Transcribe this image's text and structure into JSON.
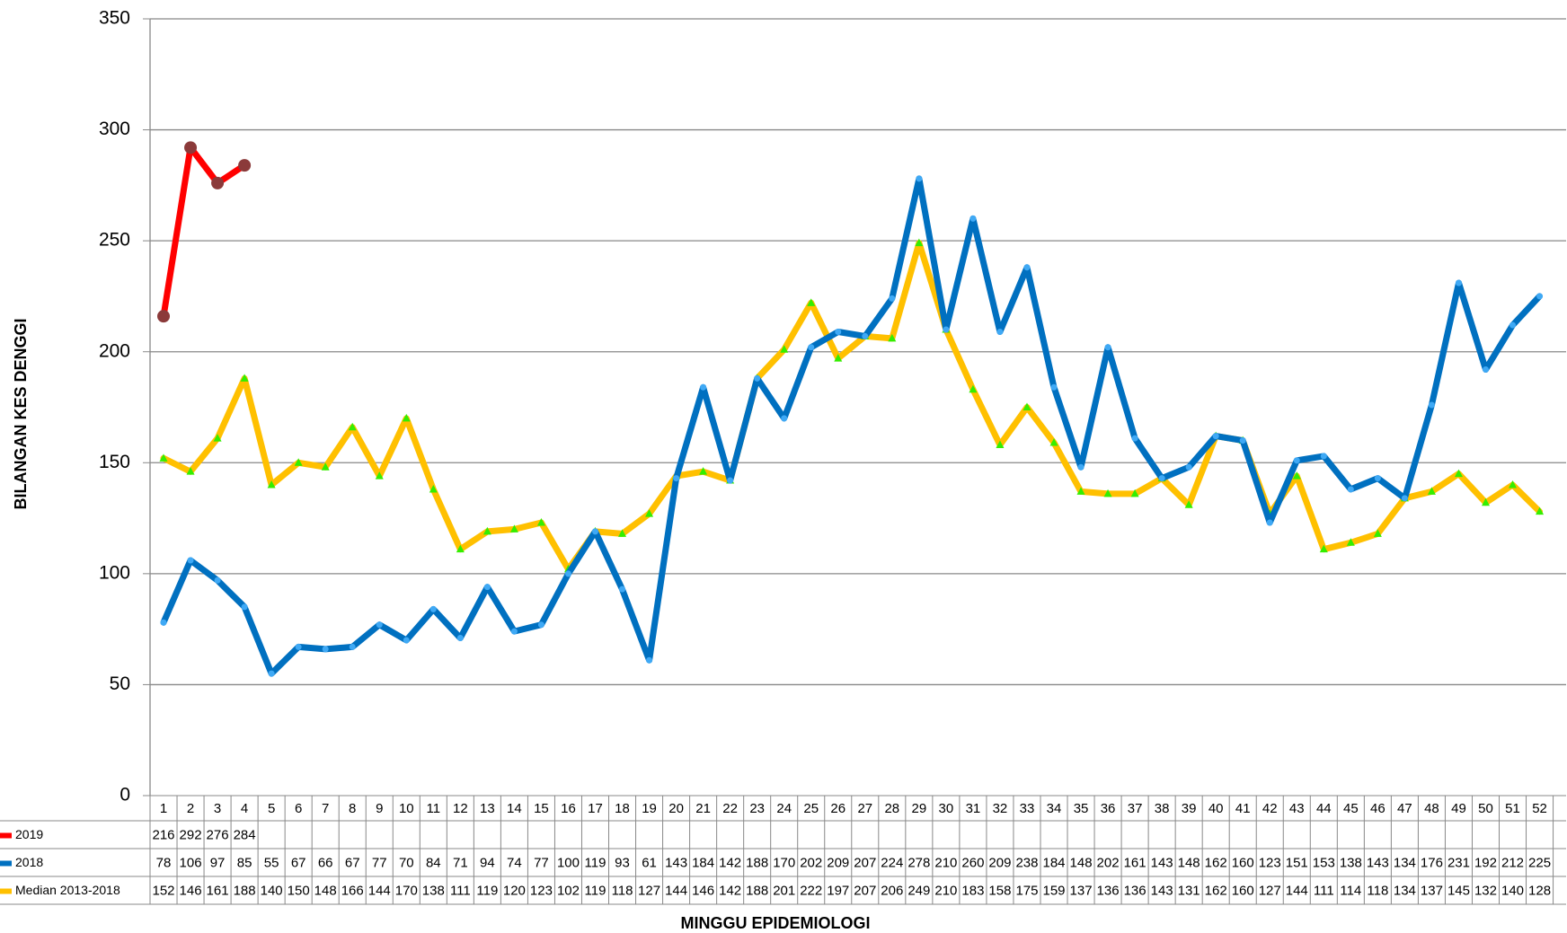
{
  "chart_data": {
    "type": "line",
    "y_label": "BILANGAN KES DENGGI",
    "x_label": "MINGGU EPIDEMIOLOGI",
    "categories": [
      "1",
      "2",
      "3",
      "4",
      "5",
      "6",
      "7",
      "8",
      "9",
      "10",
      "11",
      "12",
      "13",
      "14",
      "15",
      "16",
      "17",
      "18",
      "19",
      "20",
      "21",
      "22",
      "23",
      "24",
      "25",
      "26",
      "27",
      "28",
      "29",
      "30",
      "31",
      "32",
      "33",
      "34",
      "35",
      "36",
      "37",
      "38",
      "39",
      "40",
      "41",
      "42",
      "43",
      "44",
      "45",
      "46",
      "47",
      "48",
      "49",
      "50",
      "51",
      "52"
    ],
    "ylim": [
      0,
      350
    ],
    "yticks": [
      0,
      50,
      100,
      150,
      200,
      250,
      300,
      350
    ],
    "grid": true,
    "series": [
      {
        "name": "2019",
        "color": "#ff0000",
        "marker_color": "#8b3a3a",
        "values": [
          216,
          292,
          276,
          284,
          null,
          null,
          null,
          null,
          null,
          null,
          null,
          null,
          null,
          null,
          null,
          null,
          null,
          null,
          null,
          null,
          null,
          null,
          null,
          null,
          null,
          null,
          null,
          null,
          null,
          null,
          null,
          null,
          null,
          null,
          null,
          null,
          null,
          null,
          null,
          null,
          null,
          null,
          null,
          null,
          null,
          null,
          null,
          null,
          null,
          null,
          null,
          null
        ]
      },
      {
        "name": "2018",
        "color": "#0070c0",
        "marker_color": "#3fa9f5",
        "values": [
          78,
          106,
          97,
          85,
          55,
          67,
          66,
          67,
          77,
          70,
          84,
          71,
          94,
          74,
          77,
          100,
          119,
          93,
          61,
          143,
          184,
          142,
          188,
          170,
          202,
          209,
          207,
          224,
          278,
          210,
          260,
          209,
          238,
          184,
          148,
          202,
          161,
          143,
          148,
          162,
          160,
          123,
          151,
          153,
          138,
          143,
          134,
          176,
          231,
          192,
          212,
          225
        ]
      },
      {
        "name": "Median 2013-2018",
        "color": "#ffc000",
        "marker_color": "#33ee00",
        "values": [
          152,
          146,
          161,
          188,
          140,
          150,
          148,
          166,
          144,
          170,
          138,
          111,
          119,
          120,
          123,
          102,
          119,
          118,
          127,
          144,
          146,
          142,
          188,
          201,
          222,
          197,
          207,
          206,
          249,
          210,
          183,
          158,
          175,
          159,
          137,
          136,
          136,
          143,
          131,
          162,
          160,
          127,
          144,
          111,
          114,
          118,
          134,
          137,
          145,
          132,
          140,
          128
        ]
      }
    ]
  }
}
